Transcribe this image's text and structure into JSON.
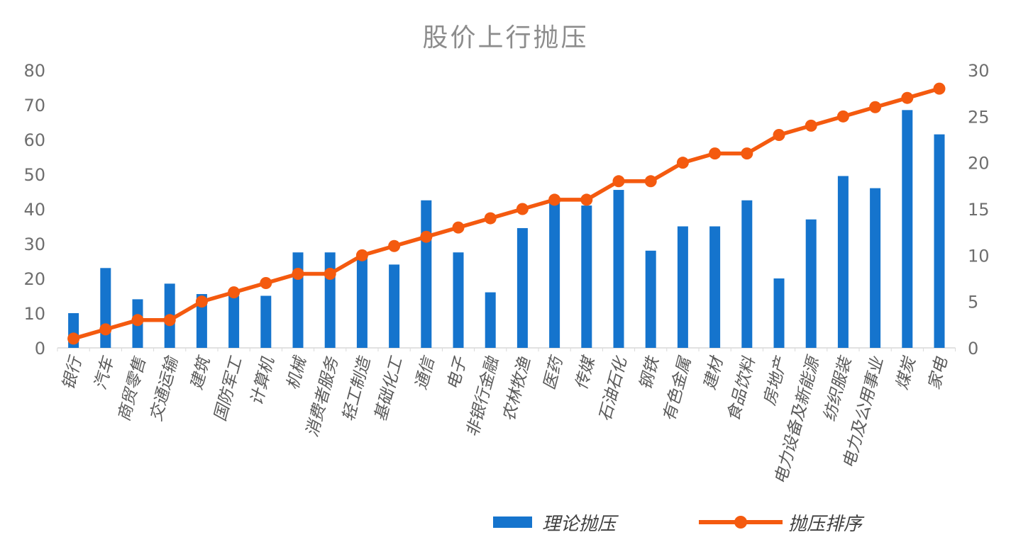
{
  "chart_data": {
    "type": "combo",
    "title": "股价上行抛压",
    "categories": [
      "银行",
      "汽车",
      "商贸零售",
      "交通运输",
      "建筑",
      "国防军工",
      "计算机",
      "机械",
      "消费者服务",
      "轻工制造",
      "基础化工",
      "通信",
      "电子",
      "非银行金融",
      "农林牧渔",
      "医药",
      "传媒",
      "石油石化",
      "钢铁",
      "有色金属",
      "建材",
      "食品饮料",
      "房地产",
      "电力设备及新能源",
      "纺织服装",
      "电力及公用事业",
      "煤炭",
      "家电"
    ],
    "series": [
      {
        "name": "理论抛压",
        "type": "bar",
        "axis": "left",
        "color": "#1574CD",
        "values": [
          10,
          23,
          14,
          18.5,
          15.5,
          15,
          15,
          27.5,
          27.5,
          26.5,
          24,
          42.5,
          27.5,
          16,
          34.5,
          42,
          41,
          45.5,
          28,
          35,
          35,
          42.5,
          20,
          37,
          49.5,
          46,
          68.5,
          61.5
        ]
      },
      {
        "name": "抛压排序",
        "type": "line",
        "axis": "right",
        "color": "#F45A0F",
        "values": [
          1,
          2,
          3,
          3,
          5,
          6,
          7,
          8,
          8,
          10,
          11,
          12,
          13,
          14,
          15,
          16,
          16,
          18,
          18,
          20,
          21,
          21,
          23,
          24,
          25,
          26,
          27,
          28
        ]
      }
    ],
    "left_axis": {
      "min": 0,
      "max": 80,
      "step": 10,
      "ticks": [
        0,
        10,
        20,
        30,
        40,
        50,
        60,
        70,
        80
      ]
    },
    "right_axis": {
      "min": 0,
      "max": 30,
      "step": 5,
      "ticks": [
        0,
        5,
        10,
        15,
        20,
        25,
        30
      ]
    },
    "grid": false,
    "legend_position": "bottom",
    "axis_line_color": "#D9D9D9"
  },
  "legend": {
    "items": [
      {
        "label": "理论抛压",
        "color": "#1574CD",
        "type": "bar"
      },
      {
        "label": "抛压排序",
        "color": "#F45A0F",
        "type": "line"
      }
    ]
  }
}
